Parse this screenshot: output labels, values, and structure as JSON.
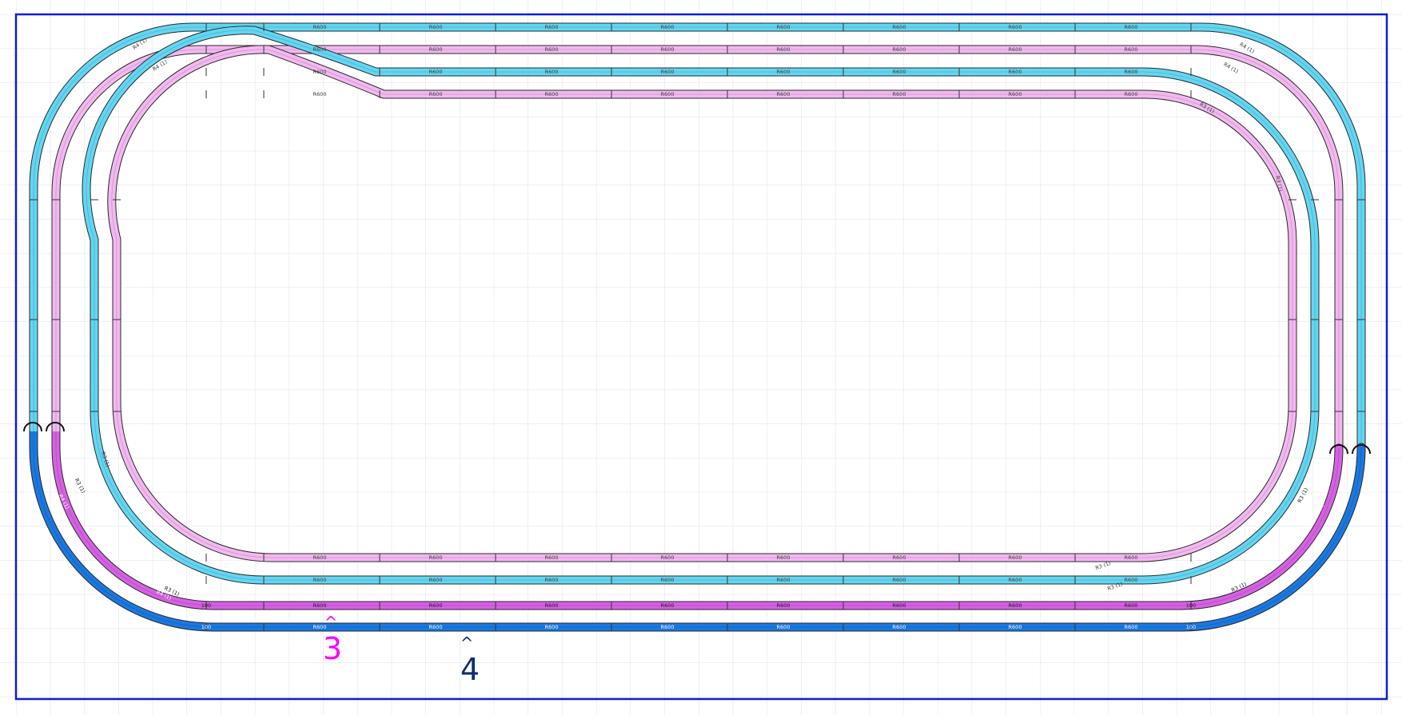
{
  "colors": {
    "grid": "#d9dde3",
    "border": "#0a1fd6",
    "track_light_blue": "#62d6f2",
    "track_light_pink": "#f2b8f0",
    "track_magenta": "#d660e4",
    "track_dark_blue": "#1a78e0",
    "edge_dark": "#2a2a2a",
    "marker_3": "#ff00ff",
    "marker_4": "#0d2f6e"
  },
  "markers": [
    {
      "id": "marker-3",
      "caret": "^",
      "label": "3",
      "color": "#ff00ff"
    },
    {
      "id": "marker-4",
      "caret": "^",
      "label": "4",
      "color": "#0d2f6e"
    }
  ],
  "tracks": [
    {
      "id": "loop-outer-blue",
      "color_key": "track_light_blue",
      "ring": 1
    },
    {
      "id": "loop-outer-pink",
      "color_key": "track_light_pink",
      "ring": 2
    },
    {
      "id": "loop-inner-blue",
      "color_key": "track_light_blue",
      "ring": 3
    },
    {
      "id": "loop-inner-pink",
      "color_key": "track_light_pink",
      "ring": 4
    },
    {
      "id": "bottom-dark-blue",
      "color_key": "track_dark_blue",
      "ring": 1
    },
    {
      "id": "bottom-magenta",
      "color_key": "track_magenta",
      "ring": 2
    }
  ],
  "piece_labels": {
    "straight": "R600",
    "curve_outer": "R4 (1)",
    "curve_inner": "R3 (1)",
    "short": "100"
  }
}
